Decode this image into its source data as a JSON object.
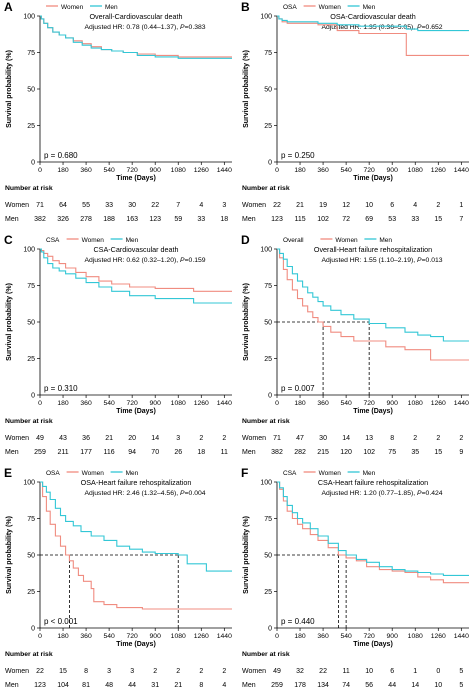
{
  "colors": {
    "women": "#f08c80",
    "men": "#33c7d6",
    "ref": "#000000"
  },
  "common": {
    "xlabel": "Time (Days)",
    "ylabel": "Survival probability (%)",
    "risk_title": "Number at risk",
    "row_women": "Women",
    "row_men": "Men",
    "legend_women": "Women",
    "legend_men": "Men",
    "xticks": [
      "0",
      "180",
      "360",
      "540",
      "720",
      "900",
      "1080",
      "1260",
      "1440"
    ],
    "yticks": [
      "0",
      "25",
      "50",
      "75",
      "100"
    ]
  },
  "chart_data": [
    {
      "panel": "A",
      "type": "line",
      "title": "Overall-Cardiovascular death",
      "subtitle_prefix": "Adjusted HR: 0.78 (0.44–1.37), ",
      "p_label": "P",
      "subtitle_suffix": "=0.383",
      "legend_title": "",
      "pvalue": "p = 0.680",
      "xlim": [
        0,
        1500
      ],
      "ylim": [
        0,
        100
      ],
      "series": [
        {
          "name": "Women",
          "x": [
            0,
            10,
            30,
            60,
            100,
            150,
            200,
            260,
            330,
            400,
            480,
            560,
            650,
            760,
            900,
            1080,
            1500
          ],
          "y": [
            100,
            98,
            95,
            92,
            89,
            87,
            85,
            83,
            81,
            79,
            77,
            76,
            75,
            74,
            73,
            72,
            72
          ]
        },
        {
          "name": "Men",
          "x": [
            0,
            10,
            30,
            60,
            100,
            150,
            200,
            260,
            330,
            400,
            480,
            560,
            650,
            760,
            900,
            1080,
            1500
          ],
          "y": [
            100,
            98,
            95,
            92,
            89,
            87,
            85,
            82,
            80,
            78,
            77,
            76,
            75,
            73,
            72,
            71,
            71
          ]
        }
      ],
      "risk": {
        "women": [
          "71",
          "64",
          "55",
          "33",
          "30",
          "22",
          "7",
          "4",
          "3"
        ],
        "men": [
          "382",
          "326",
          "278",
          "188",
          "163",
          "123",
          "59",
          "33",
          "18"
        ]
      }
    },
    {
      "panel": "B",
      "type": "line",
      "title": "OSA-Cardiovascular death",
      "subtitle_prefix": "Adjusted HR: 1.35 (0.36–5.05), ",
      "p_label": "P",
      "subtitle_suffix": "=0.652",
      "legend_title": "OSA",
      "pvalue": "p = 0.250",
      "xlim": [
        0,
        1500
      ],
      "ylim": [
        0,
        100
      ],
      "series": [
        {
          "name": "Women",
          "x": [
            0,
            15,
            40,
            80,
            180,
            320,
            470,
            640,
            800,
            1010,
            1100,
            1500
          ],
          "y": [
            100,
            98,
            96,
            95,
            95,
            94,
            90,
            88,
            88,
            73,
            73,
            73
          ]
        },
        {
          "name": "Men",
          "x": [
            0,
            15,
            40,
            80,
            180,
            320,
            470,
            640,
            800,
            1010,
            1100,
            1500
          ],
          "y": [
            100,
            98,
            97,
            96,
            96,
            95,
            94,
            93,
            93,
            91,
            90,
            90
          ]
        }
      ],
      "risk": {
        "women": [
          "22",
          "21",
          "19",
          "12",
          "10",
          "6",
          "4",
          "2",
          "1"
        ],
        "men": [
          "123",
          "115",
          "102",
          "72",
          "69",
          "53",
          "33",
          "15",
          "7"
        ]
      }
    },
    {
      "panel": "C",
      "type": "line",
      "title": "CSA-Cardiovascular death",
      "subtitle_prefix": "Adjusted HR: 0.62 (0.32–1.20), ",
      "p_label": "P",
      "subtitle_suffix": "=0.159",
      "legend_title": "CSA",
      "pvalue": "p = 0.310",
      "xlim": [
        0,
        1500
      ],
      "ylim": [
        0,
        100
      ],
      "series": [
        {
          "name": "Women",
          "x": [
            0,
            10,
            30,
            60,
            100,
            150,
            200,
            280,
            360,
            460,
            560,
            700,
            900,
            1200,
            1500
          ],
          "y": [
            100,
            99,
            97,
            95,
            92,
            90,
            87,
            84,
            81,
            78,
            76,
            74,
            73,
            71,
            71
          ]
        },
        {
          "name": "Men",
          "x": [
            0,
            10,
            30,
            60,
            100,
            150,
            200,
            280,
            360,
            460,
            560,
            700,
            900,
            1200,
            1500
          ],
          "y": [
            100,
            98,
            94,
            90,
            87,
            85,
            83,
            80,
            77,
            74,
            71,
            68,
            66,
            63,
            63
          ]
        }
      ],
      "risk": {
        "women": [
          "49",
          "43",
          "36",
          "21",
          "20",
          "14",
          "3",
          "2",
          "2"
        ],
        "men": [
          "259",
          "211",
          "177",
          "116",
          "94",
          "70",
          "26",
          "18",
          "11"
        ]
      }
    },
    {
      "panel": "D",
      "type": "line",
      "title": "Overall-Heart failure rehospitalization",
      "subtitle_prefix": "Adjusted HR: 1.55 (1.10–2.19), ",
      "p_label": "P",
      "subtitle_suffix": "=0.013",
      "legend_title": "Overall",
      "pvalue": "p = 0.007",
      "xlim": [
        0,
        1500
      ],
      "ylim": [
        0,
        100
      ],
      "series": [
        {
          "name": "Women",
          "x": [
            0,
            20,
            50,
            80,
            120,
            160,
            200,
            240,
            280,
            320,
            360,
            420,
            500,
            600,
            720,
            850,
            1000,
            1100,
            1200,
            1300,
            1500
          ],
          "y": [
            100,
            94,
            86,
            79,
            72,
            66,
            61,
            57,
            53,
            50,
            47,
            43,
            40,
            37,
            37,
            33,
            31,
            31,
            24,
            24,
            24
          ]
        },
        {
          "name": "Men",
          "x": [
            0,
            20,
            50,
            80,
            120,
            160,
            200,
            240,
            280,
            320,
            360,
            420,
            500,
            600,
            720,
            850,
            1000,
            1100,
            1200,
            1300,
            1500
          ],
          "y": [
            100,
            97,
            93,
            88,
            83,
            78,
            74,
            70,
            67,
            64,
            61,
            58,
            55,
            52,
            49,
            46,
            43,
            41,
            40,
            37,
            37
          ]
        }
      ],
      "medians": [
        360,
        720
      ],
      "risk": {
        "women": [
          "71",
          "47",
          "30",
          "14",
          "13",
          "8",
          "2",
          "2",
          "2"
        ],
        "men": [
          "382",
          "282",
          "215",
          "120",
          "102",
          "75",
          "35",
          "15",
          "9"
        ]
      }
    },
    {
      "panel": "E",
      "type": "line",
      "title": "OSA-Heart failure rehospitalization",
      "subtitle_prefix": "Adjusted HR: 2.46 (1.32–4.56), ",
      "p_label": "P",
      "subtitle_suffix": "=0.004",
      "legend_title": "OSA",
      "pvalue": "p < 0.001",
      "xlim": [
        0,
        1500
      ],
      "ylim": [
        0,
        100
      ],
      "series": [
        {
          "name": "Women",
          "x": [
            0,
            20,
            50,
            80,
            120,
            160,
            200,
            230,
            260,
            300,
            340,
            400,
            420,
            500,
            600,
            800,
            1100,
            1300,
            1500
          ],
          "y": [
            100,
            90,
            80,
            71,
            63,
            56,
            50,
            46,
            41,
            36,
            32,
            27,
            18,
            16,
            14,
            13,
            13,
            13,
            13
          ]
        },
        {
          "name": "Men",
          "x": [
            0,
            20,
            50,
            80,
            120,
            160,
            200,
            260,
            320,
            400,
            500,
            600,
            700,
            800,
            900,
            1000,
            1080,
            1150,
            1300,
            1500
          ],
          "y": [
            100,
            97,
            93,
            88,
            82,
            77,
            73,
            70,
            66,
            63,
            60,
            56,
            54,
            52,
            51,
            51,
            50,
            44,
            39,
            39
          ]
        }
      ],
      "medians": [
        230,
        1080
      ],
      "risk": {
        "women": [
          "22",
          "15",
          "8",
          "3",
          "3",
          "2",
          "2",
          "2",
          "2"
        ],
        "men": [
          "123",
          "104",
          "81",
          "48",
          "44",
          "31",
          "21",
          "8",
          "4"
        ]
      }
    },
    {
      "panel": "F",
      "type": "line",
      "title": "CSA-Heart failure rehospitalization",
      "subtitle_prefix": "Adjusted HR: 1.20 (0.77–1.85), ",
      "p_label": "P",
      "subtitle_suffix": "=0.424",
      "legend_title": "CSA",
      "pvalue": "p = 0.440",
      "xlim": [
        0,
        1500
      ],
      "ylim": [
        0,
        100
      ],
      "series": [
        {
          "name": "Women",
          "x": [
            0,
            20,
            50,
            80,
            120,
            160,
            200,
            260,
            320,
            400,
            480,
            540,
            620,
            700,
            800,
            900,
            1000,
            1100,
            1200,
            1300,
            1500
          ],
          "y": [
            100,
            95,
            87,
            80,
            75,
            71,
            68,
            64,
            60,
            55,
            50,
            48,
            46,
            42,
            40,
            39,
            38,
            35,
            33,
            31,
            31
          ]
        },
        {
          "name": "Men",
          "x": [
            0,
            20,
            50,
            80,
            120,
            160,
            200,
            260,
            320,
            400,
            480,
            540,
            620,
            700,
            800,
            900,
            1000,
            1100,
            1200,
            1300,
            1500
          ],
          "y": [
            100,
            96,
            90,
            84,
            79,
            75,
            72,
            68,
            63,
            58,
            53,
            50,
            47,
            45,
            42,
            40,
            39,
            38,
            37,
            36,
            36
          ]
        }
      ],
      "medians": [
        480,
        540
      ],
      "risk": {
        "women": [
          "49",
          "32",
          "22",
          "11",
          "10",
          "6",
          "1",
          "0",
          "5"
        ],
        "men": [
          "259",
          "178",
          "134",
          "74",
          "56",
          "44",
          "14",
          "10",
          "5"
        ]
      }
    }
  ]
}
